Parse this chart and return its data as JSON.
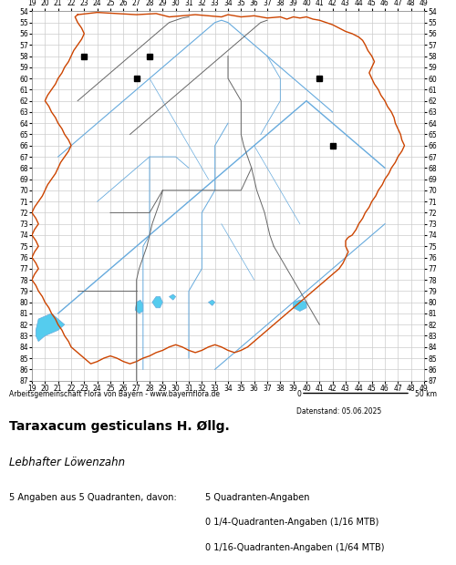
{
  "title": "Taraxacum gesticulans H. Øllg.",
  "subtitle": "Lebhafter Löwenzahn",
  "footer_left": "Arbeitsgemeinschaft Flora von Bayern - www.bayernflora.de",
  "footer_right_scale": "0            50 km",
  "date_label": "Datenstand: 05.06.2025",
  "stats_line1": "5 Angaben aus 5 Quadranten, davon:",
  "stats_col2_line1": "5 Quadranten-Angaben",
  "stats_col2_line2": "0 1/4-Quadranten-Angaben (1/16 MTB)",
  "stats_col2_line3": "0 1/16-Quadranten-Angaben (1/64 MTB)",
  "x_ticks": [
    19,
    20,
    21,
    22,
    23,
    24,
    25,
    26,
    27,
    28,
    29,
    30,
    31,
    32,
    33,
    34,
    35,
    36,
    37,
    38,
    39,
    40,
    41,
    42,
    43,
    44,
    45,
    46,
    47,
    48,
    49
  ],
  "y_ticks": [
    54,
    55,
    56,
    57,
    58,
    59,
    60,
    61,
    62,
    63,
    64,
    65,
    66,
    67,
    68,
    69,
    70,
    71,
    72,
    73,
    74,
    75,
    76,
    77,
    78,
    79,
    80,
    81,
    82,
    83,
    84,
    85,
    86,
    87
  ],
  "x_min": 19,
  "x_max": 49,
  "y_min": 54,
  "y_max": 87,
  "grid_color": "#cccccc",
  "background_color": "#ffffff",
  "border_color_outer": "#cc4400",
  "border_color_inner": "#666666",
  "river_color": "#66aadd",
  "lake_color": "#55ccee",
  "occurrence_color": "#000000",
  "occurrences": [
    [
      23,
      58
    ],
    [
      28,
      58
    ],
    [
      27,
      60
    ],
    [
      41,
      60
    ],
    [
      42,
      66
    ]
  ],
  "map_area_color": "#ffffff",
  "outer_area_color": "#f0f0f0"
}
